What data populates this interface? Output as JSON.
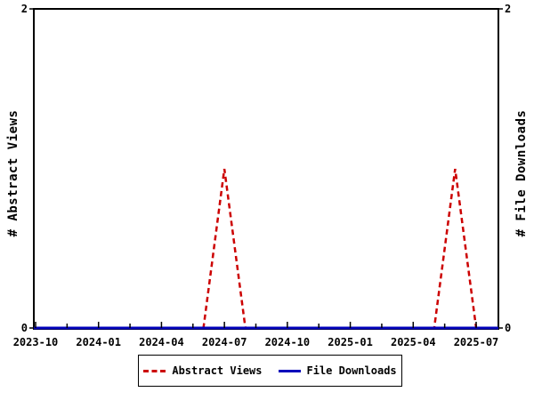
{
  "chart_data": {
    "type": "line",
    "title": "",
    "ylabel_left": "# Abstract Views",
    "ylabel_right": "# File Downloads",
    "ylim": [
      0,
      2
    ],
    "y_tick_labels": [
      "0",
      "2"
    ],
    "x_tick_labels": [
      "2023-10",
      "2024-01",
      "2024-04",
      "2024-07",
      "2024-10",
      "2025-01",
      "2025-04",
      "2025-07"
    ],
    "x": [
      "2023-10",
      "2023-11",
      "2023-12",
      "2024-01",
      "2024-02",
      "2024-03",
      "2024-04",
      "2024-05",
      "2024-06",
      "2024-07",
      "2024-08",
      "2024-09",
      "2024-10",
      "2024-11",
      "2024-12",
      "2025-01",
      "2025-02",
      "2025-03",
      "2025-04",
      "2025-05",
      "2025-06",
      "2025-07",
      "2025-08"
    ],
    "series": [
      {
        "name": "Abstract Views",
        "color": "#cc0000",
        "style": "dashed",
        "values": [
          0,
          0,
          0,
          0,
          0,
          0,
          0,
          0,
          0,
          1,
          0,
          0,
          0,
          0,
          0,
          0,
          0,
          0,
          0,
          0,
          1,
          0,
          0
        ]
      },
      {
        "name": "File Downloads",
        "color": "#0000bb",
        "style": "solid",
        "values": [
          0,
          0,
          0,
          0,
          0,
          0,
          0,
          0,
          0,
          0,
          0,
          0,
          0,
          0,
          0,
          0,
          0,
          0,
          0,
          0,
          0,
          0,
          0
        ]
      }
    ],
    "axis_color": "#000000",
    "grid": "off",
    "legend_position": "bottom-center"
  },
  "legend": {
    "items": [
      {
        "label": "Abstract Views"
      },
      {
        "label": "File Downloads"
      }
    ]
  }
}
